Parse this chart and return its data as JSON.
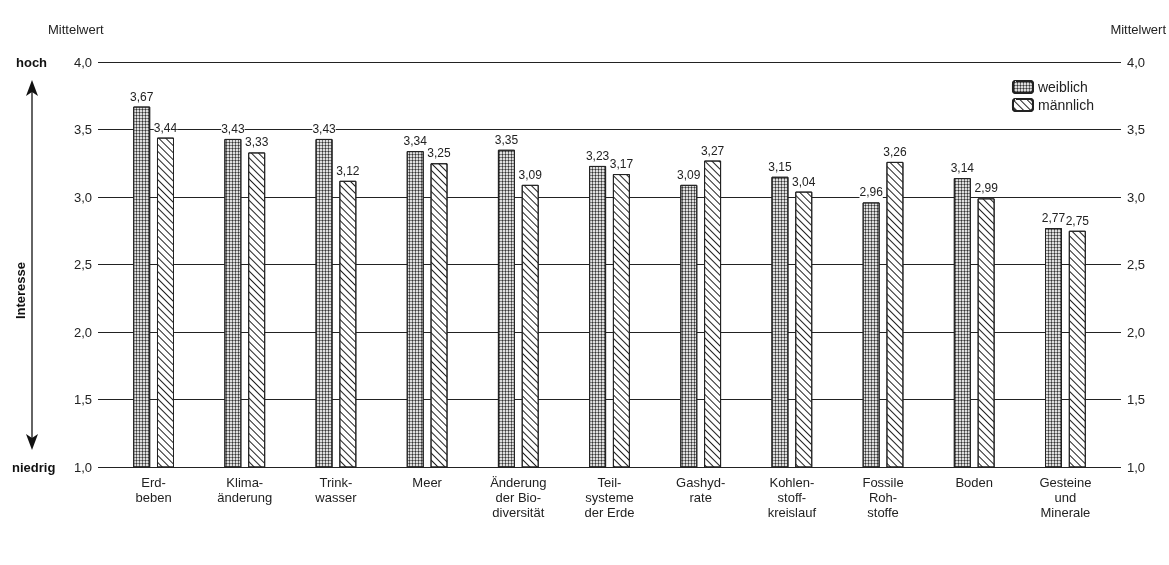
{
  "chart_data": {
    "type": "bar",
    "categories": [
      "Erd-\nbeben",
      "Klima-\nänderung",
      "Trink-\nwasser",
      "Meer",
      "Änderung\nder Bio-\ndiversität",
      "Teil-\nsysteme\nder Erde",
      "Gashyd-\nrate",
      "Kohlen-\nstoff-\nkreislauf",
      "Fossile\nRoh-\nstoffe",
      "Boden",
      "Gesteine\nund\nMinerale"
    ],
    "series": [
      {
        "name": "weiblich",
        "color": "#ffffff",
        "values": [
          3.67,
          3.43,
          3.43,
          3.34,
          3.35,
          3.23,
          3.09,
          3.15,
          2.96,
          3.14,
          2.77
        ],
        "value_labels": [
          "3,67",
          "3,43",
          "3,43",
          "3,34",
          "3,35",
          "3,23",
          "3,09",
          "3,15",
          "2,96",
          "3,14",
          "2,77"
        ]
      },
      {
        "name": "männlich",
        "color": "#ffffff",
        "values": [
          3.44,
          3.33,
          3.12,
          3.25,
          3.09,
          3.17,
          3.27,
          3.04,
          3.26,
          2.99,
          2.75
        ],
        "value_labels": [
          "3,44",
          "3,33",
          "3,12",
          "3,25",
          "3,09",
          "3,17",
          "3,27",
          "3,04",
          "3,26",
          "2,99",
          "2,75"
        ]
      }
    ],
    "ylabel": "Mittelwert",
    "y2label": "Mittelwert",
    "ylim": [
      1,
      4
    ],
    "y2lim": [
      1,
      4
    ],
    "yticks": [
      {
        "value": 1,
        "label": "1,0"
      },
      {
        "value": 1.5,
        "label": "1,5"
      },
      {
        "value": 2,
        "label": "2,0"
      },
      {
        "value": 2.5,
        "label": "2,5"
      },
      {
        "value": 3,
        "label": "3,0"
      },
      {
        "value": 3.5,
        "label": "3,5"
      },
      {
        "value": 4,
        "label": "4,0"
      }
    ],
    "y2ticks": [
      {
        "value": 1,
        "label": "1,0"
      },
      {
        "value": 1.5,
        "label": "1,5"
      },
      {
        "value": 2,
        "label": "2,0"
      },
      {
        "value": 2.5,
        "label": "2,5"
      },
      {
        "value": 3,
        "label": "3,0"
      },
      {
        "value": 3.5,
        "label": "3,5"
      },
      {
        "value": 4,
        "label": "4,0"
      }
    ],
    "annotations": [
      "Interesse",
      "hoch",
      "niedrig"
    ],
    "grid": "y",
    "legend": "top right"
  }
}
